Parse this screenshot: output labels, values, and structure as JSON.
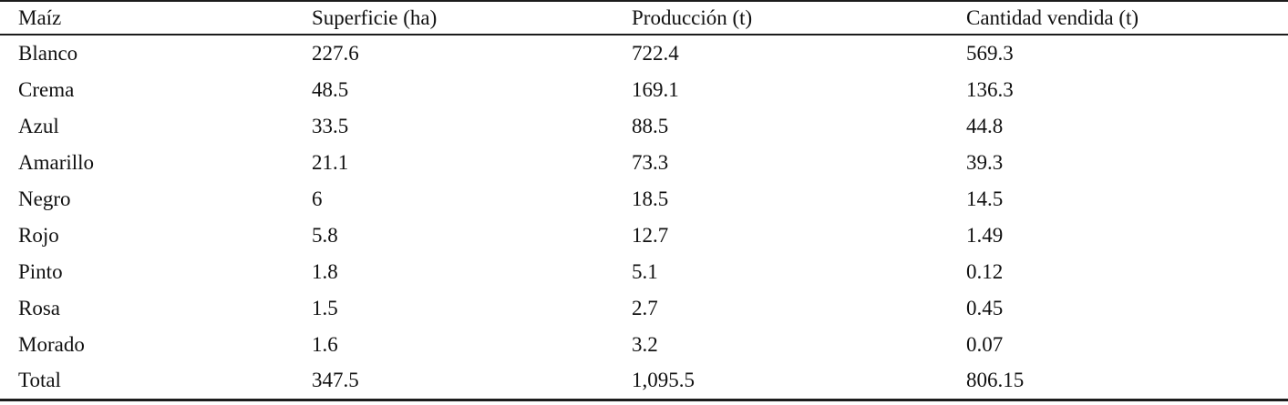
{
  "table": {
    "columns": [
      "Maíz",
      "Superficie (ha)",
      "Producción (t)",
      "Cantidad vendida (t)"
    ],
    "rows": [
      [
        "Blanco",
        "227.6",
        "722.4",
        "569.3"
      ],
      [
        "Crema",
        "48.5",
        "169.1",
        "136.3"
      ],
      [
        "Azul",
        "33.5",
        "88.5",
        "44.8"
      ],
      [
        "Amarillo",
        "21.1",
        "73.3",
        "39.3"
      ],
      [
        "Negro",
        "6",
        "18.5",
        "14.5"
      ],
      [
        "Rojo",
        "5.8",
        "12.7",
        "1.49"
      ],
      [
        "Pinto",
        "1.8",
        "5.1",
        "0.12"
      ],
      [
        "Rosa",
        "1.5",
        "2.7",
        "0.45"
      ],
      [
        "Morado",
        "1.6",
        "3.2",
        "0.07"
      ],
      [
        "Total",
        "347.5",
        "1,095.5",
        "806.15"
      ]
    ]
  },
  "colors": {
    "text": "#111111",
    "rule": "#1c1c1c",
    "background": "#ffffff"
  }
}
